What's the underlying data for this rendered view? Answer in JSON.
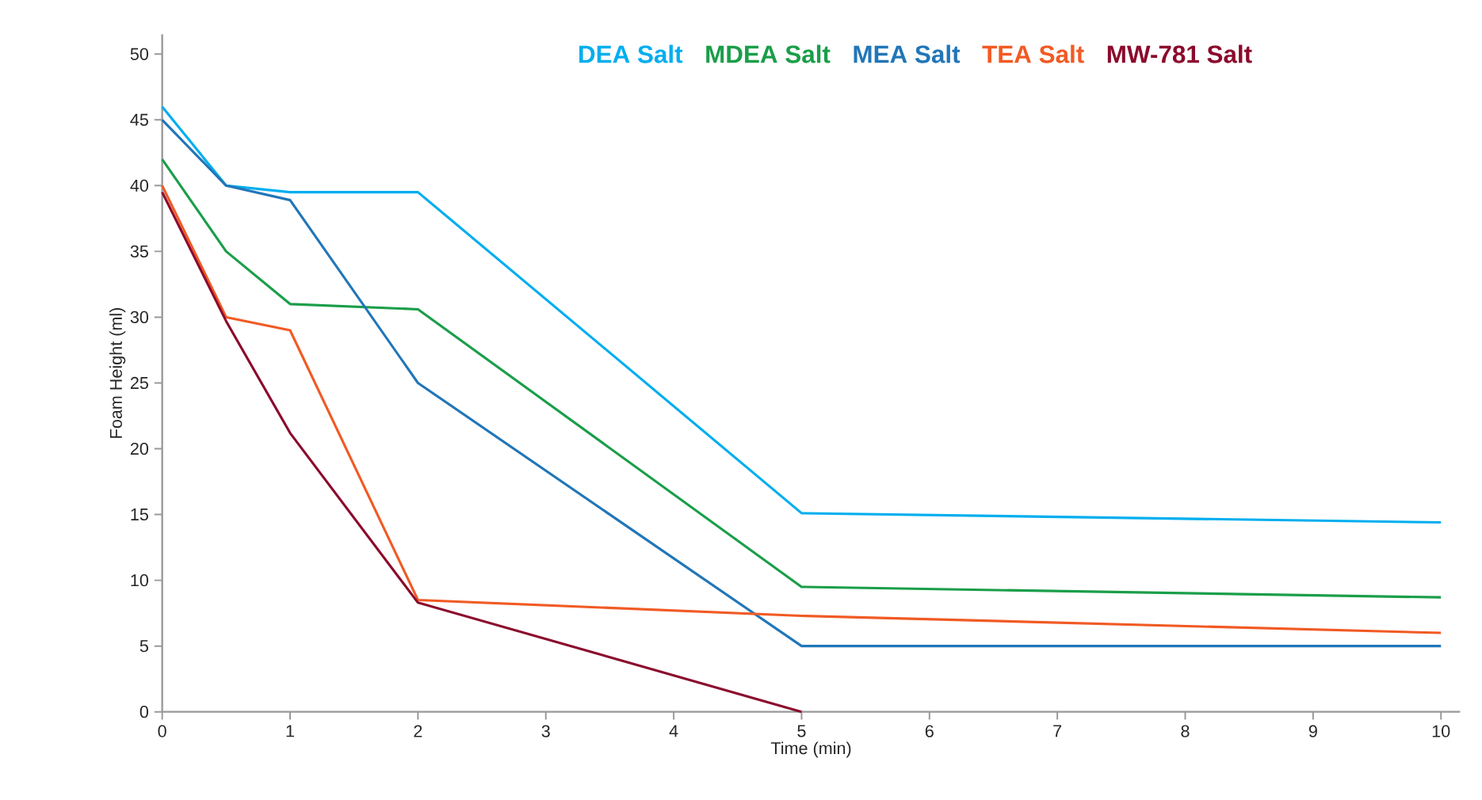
{
  "chart_data": {
    "type": "line",
    "xlabel": "Time (min)",
    "ylabel": "Foam Height (ml)",
    "x": [
      0,
      0.5,
      1,
      2,
      5,
      10
    ],
    "series": [
      {
        "name": "DEA Salt",
        "color": "#00aeef",
        "values": [
          46,
          40,
          39.5,
          39.5,
          15.1,
          14.4
        ]
      },
      {
        "name": "MDEA Salt",
        "color": "#1a9e49",
        "values": [
          42,
          35,
          31,
          30.6,
          9.5,
          8.7
        ]
      },
      {
        "name": "MEA Salt",
        "color": "#2176b8",
        "values": [
          45,
          40,
          38.9,
          25,
          5,
          5
        ]
      },
      {
        "name": "TEA Salt",
        "color": "#f15a24",
        "values": [
          40,
          30,
          29,
          8.5,
          7.3,
          6
        ]
      },
      {
        "name": "MW-781 Salt",
        "color": "#8b0a2c",
        "values": [
          39.5,
          29.7,
          21.2,
          8.3,
          0,
          null
        ]
      }
    ],
    "xlim": [
      0,
      10.15
    ],
    "ylim": [
      0,
      51.5
    ],
    "xticks": [
      0,
      1,
      2,
      3,
      4,
      5,
      6,
      7,
      8,
      9,
      10
    ],
    "yticks": [
      0,
      5,
      10,
      15,
      20,
      25,
      30,
      35,
      40,
      45,
      50
    ],
    "legend": "top",
    "grid": false
  }
}
